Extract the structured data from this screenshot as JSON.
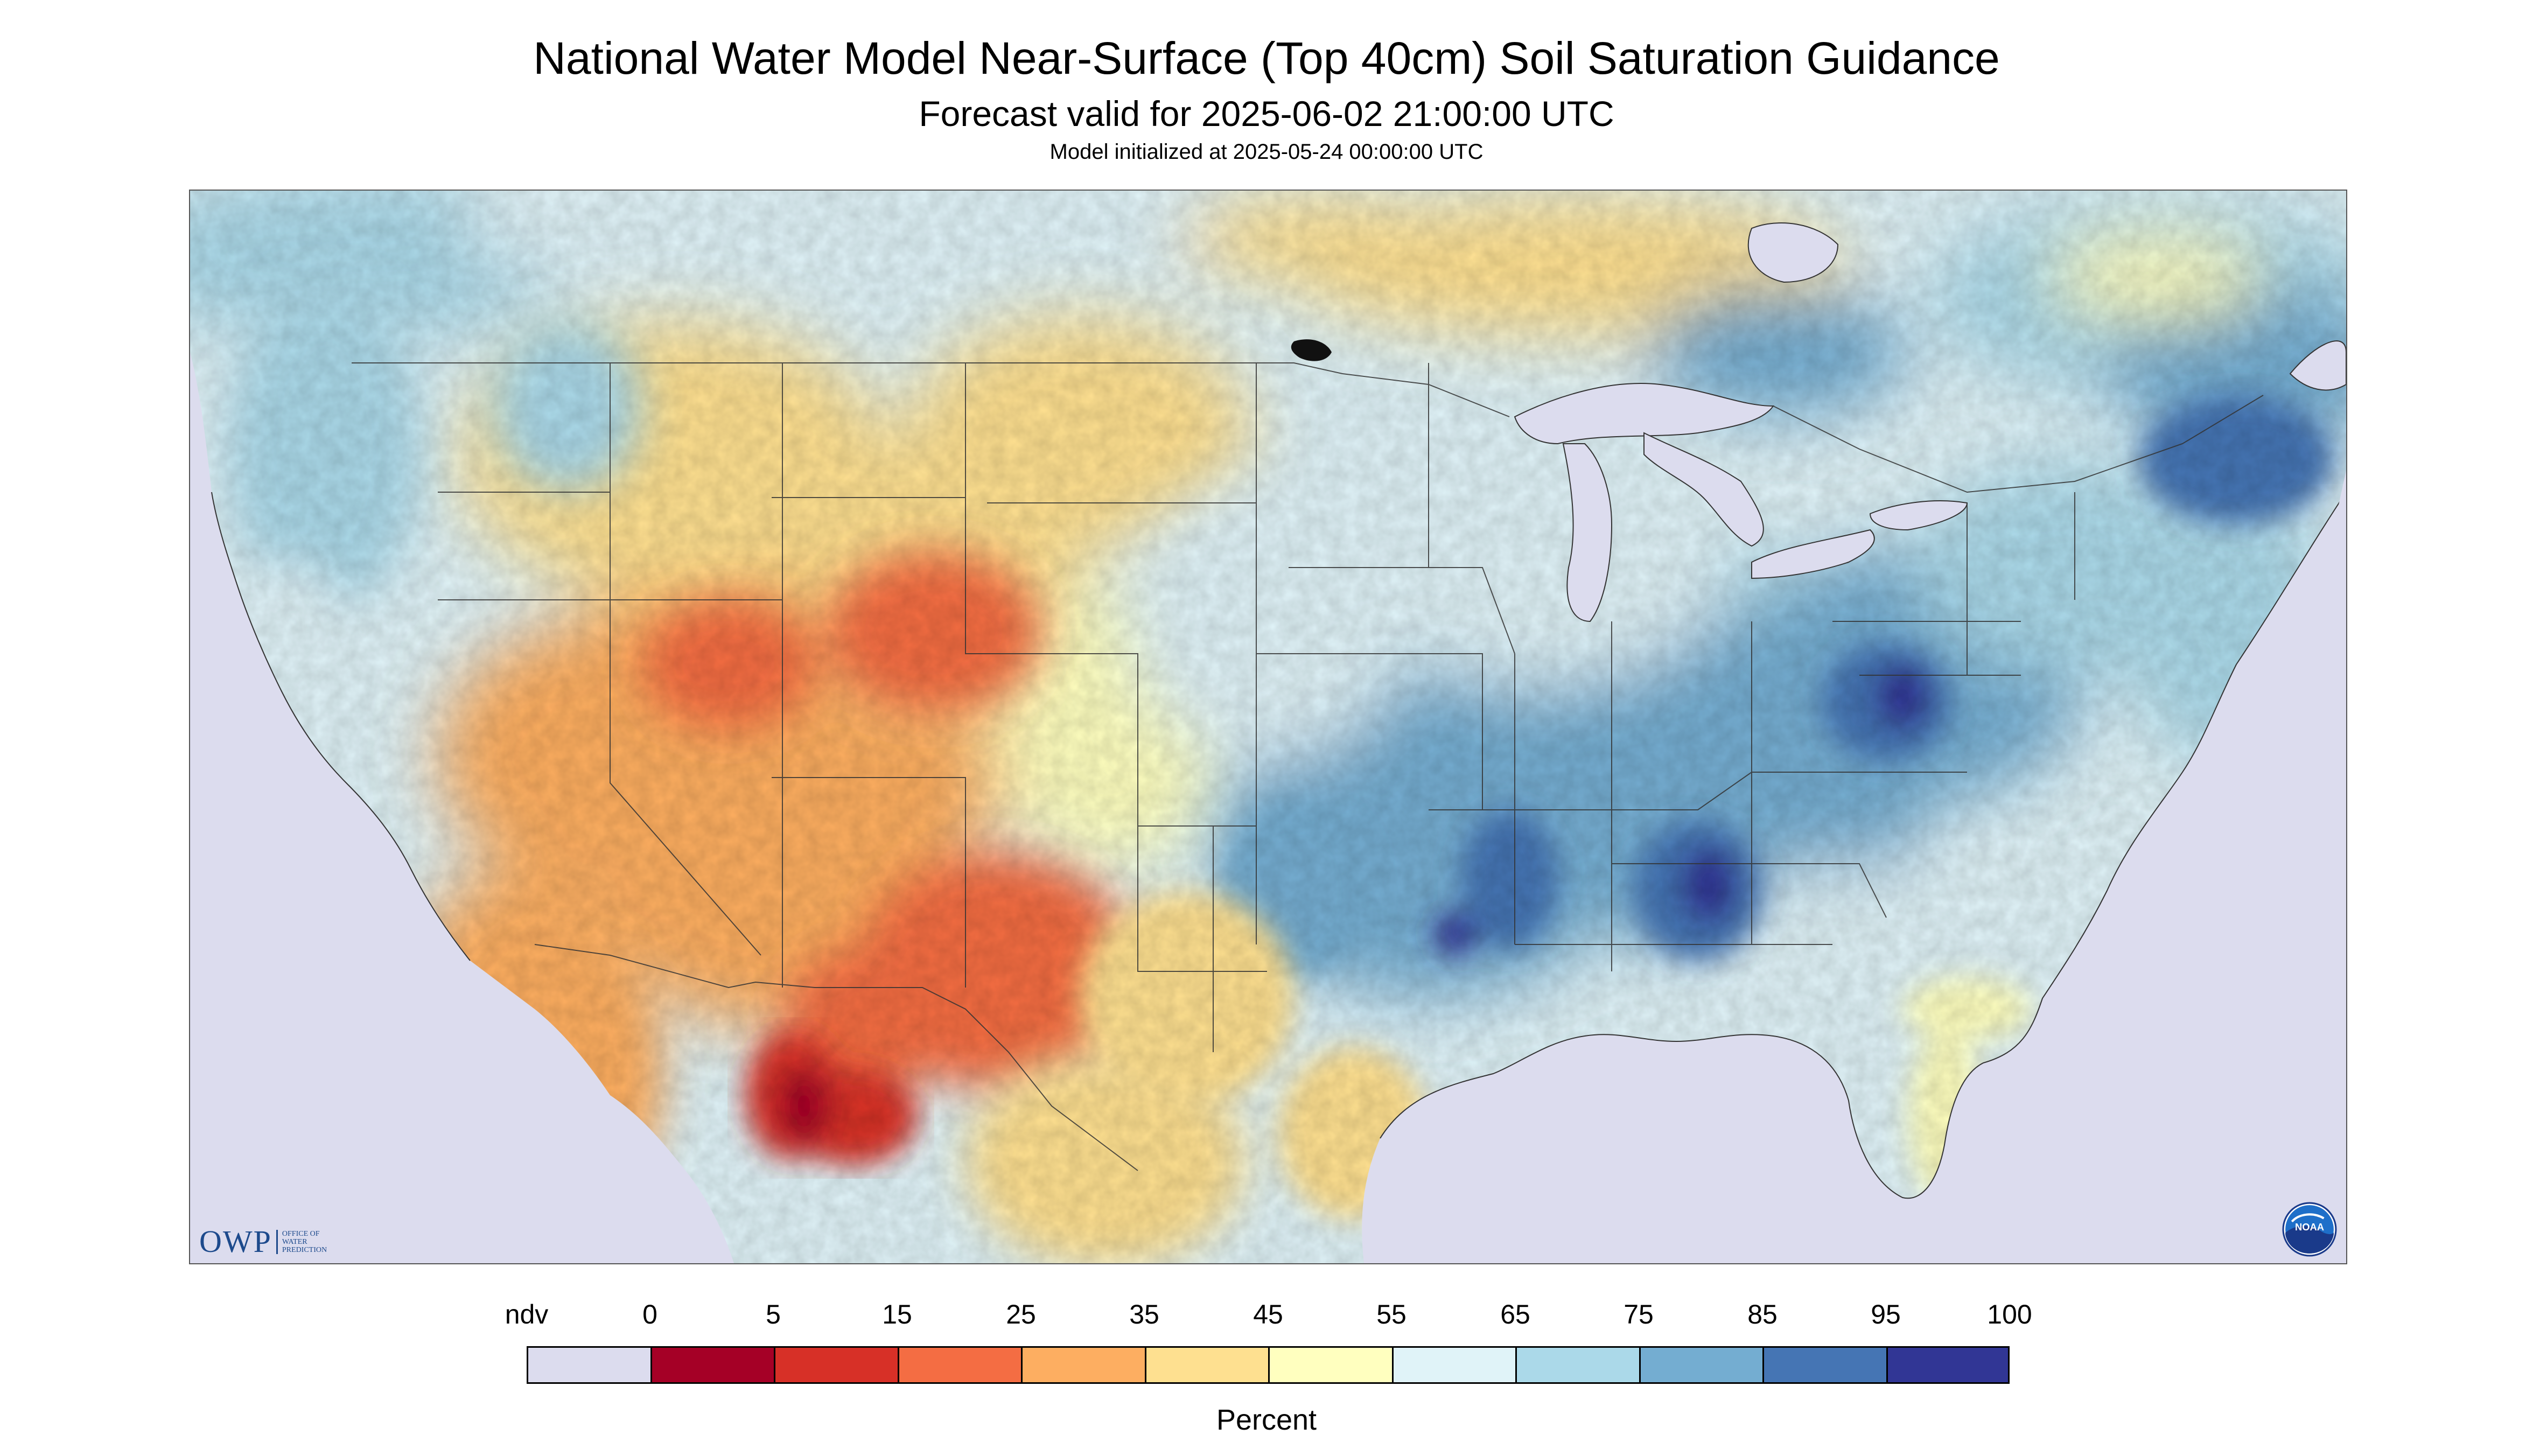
{
  "header": {
    "title": "National Water Model Near-Surface (Top 40cm) Soil Saturation Guidance",
    "forecast_valid": "Forecast valid for 2025-06-02 21:00:00 UTC",
    "model_initialized": "Model initialized at 2025-05-24 00:00:00 UTC"
  },
  "logos": {
    "owp_mark": "OWP",
    "owp_lines": [
      "OFFICE OF",
      "WATER",
      "PREDICTION"
    ],
    "noaa_text": "NOAA"
  },
  "legend": {
    "unit": "Percent",
    "labels": [
      "ndv",
      "0",
      "5",
      "15",
      "25",
      "35",
      "45",
      "55",
      "65",
      "75",
      "85",
      "95",
      "100"
    ],
    "colors": [
      "#dcdcee",
      "#a50026",
      "#d73027",
      "#f46d43",
      "#fdae61",
      "#fee090",
      "#ffffbf",
      "#e0f3f8",
      "#abd9e9",
      "#74add1",
      "#4575b4",
      "#313695"
    ]
  },
  "map": {
    "projection": "Lambert conformal",
    "region": "Continental United States",
    "nodata_color": "#dcdcee",
    "water_color": "#dcdcee",
    "boundary_color": "#333333"
  }
}
